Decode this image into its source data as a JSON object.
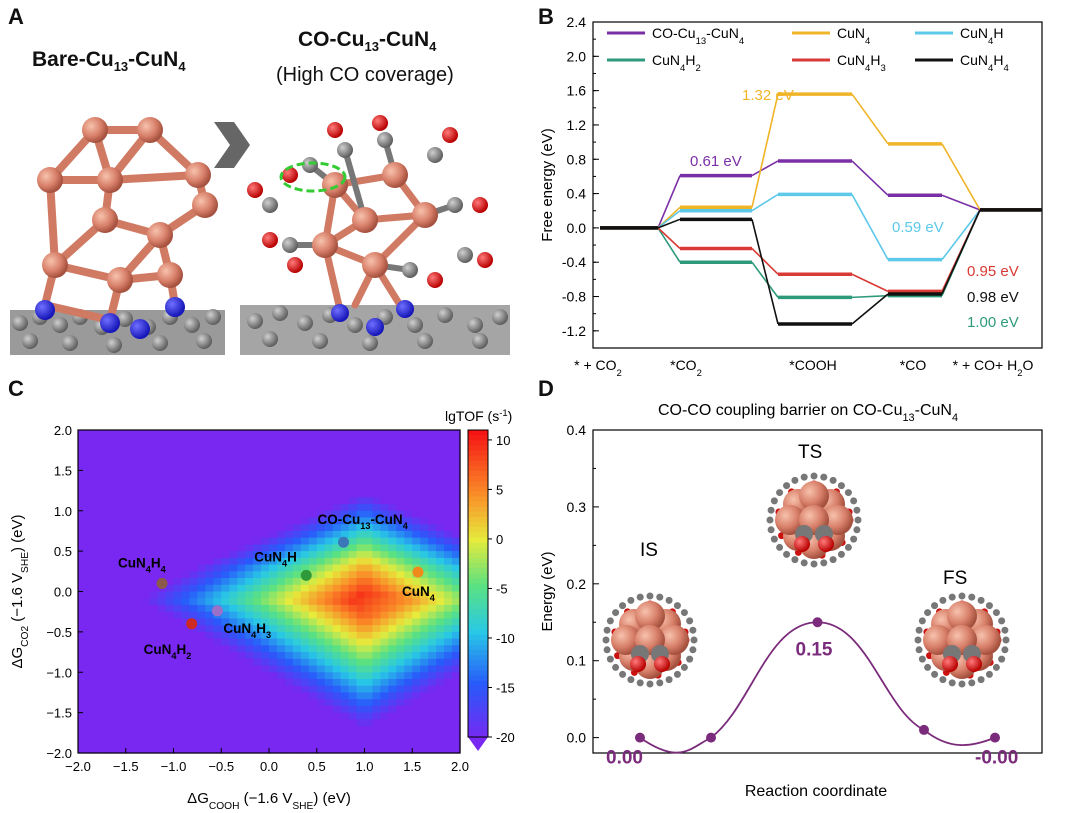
{
  "panels": {
    "a": "A",
    "b": "B",
    "c": "C",
    "d": "D"
  },
  "panel_a": {
    "title_left": "Bare-Cu",
    "title_left_sub": "13",
    "title_left_tail": "-CuN",
    "title_left_sub2": "4",
    "title_right": "CO-Cu",
    "title_right_sub": "13",
    "title_right_tail": "-CuN",
    "title_right_sub2": "4",
    "subtitle_right": "(High CO coverage)",
    "arrow_icon": "chevron-right-icon"
  },
  "chart_data": [
    {
      "id": "B",
      "type": "line",
      "ylabel": "Free energy (eV)",
      "ylim": [
        -1.4,
        2.4
      ],
      "yticks": [
        "-1.2",
        "-0.8",
        "-0.4",
        "0.0",
        "0.4",
        "0.8",
        "1.2",
        "1.6",
        "2.0",
        "2.4"
      ],
      "categories": [
        "* + CO2",
        "*CO2",
        "*COOH",
        "*CO",
        "* + CO+ H2O"
      ],
      "category_labels": [
        {
          "main": "* + CO",
          "sub": "2",
          "tail": ""
        },
        {
          "main": "*CO",
          "sub": "2",
          "tail": ""
        },
        {
          "main": "*COOH",
          "sub": "",
          "tail": ""
        },
        {
          "main": "*CO",
          "sub": "",
          "tail": ""
        },
        {
          "main": "* + CO+ H",
          "sub": "2",
          "tail": "O"
        }
      ],
      "series": [
        {
          "name": "CO-Cu13-CuN4",
          "color": "#7b2fa6",
          "values": [
            0.0,
            0.61,
            0.78,
            0.38,
            0.21
          ]
        },
        {
          "name": "CuN4",
          "color": "#f0b429",
          "values": [
            0.0,
            0.24,
            1.56,
            0.98,
            0.21
          ]
        },
        {
          "name": "CuN4H",
          "color": "#5cc8ea",
          "values": [
            0.0,
            0.2,
            0.39,
            -0.37,
            0.21
          ]
        },
        {
          "name": "CuN4H2",
          "color": "#2e9a7b",
          "values": [
            0.0,
            -0.4,
            -0.81,
            -0.79,
            0.21
          ]
        },
        {
          "name": "CuN4H3",
          "color": "#d93a35",
          "values": [
            0.0,
            -0.24,
            -0.54,
            -0.74,
            0.21
          ]
        },
        {
          "name": "CuN4H4",
          "color": "#111111",
          "values": [
            0.0,
            0.1,
            -1.12,
            -0.77,
            0.21
          ]
        }
      ],
      "legend_labels": [
        {
          "main": "CO-Cu",
          "sub": "13",
          "tail": "-CuN",
          "sub2": "4"
        },
        {
          "main": "CuN",
          "sub": "4",
          "tail": "",
          "sub2": ""
        },
        {
          "main": "CuN",
          "sub": "4",
          "tail": "H",
          "sub2": ""
        },
        {
          "main": "CuN",
          "sub": "4",
          "tail": "H",
          "sub2": "2"
        },
        {
          "main": "CuN",
          "sub": "4",
          "tail": "H",
          "sub2": "3"
        },
        {
          "main": "CuN",
          "sub": "4",
          "tail": "H",
          "sub2": "4"
        }
      ],
      "annotations": [
        {
          "text": "1.32 eV",
          "color": "#f0b429"
        },
        {
          "text": "0.61 eV",
          "color": "#7b2fa6"
        },
        {
          "text": "0.59 eV",
          "color": "#5cc8ea"
        },
        {
          "text": "0.95 eV",
          "color": "#d93a35"
        },
        {
          "text": "0.98 eV",
          "color": "#111111"
        },
        {
          "text": "1.00 eV",
          "color": "#2e9a7b"
        }
      ]
    },
    {
      "id": "C",
      "type": "heatmap",
      "xlabel": {
        "main": "ΔG",
        "sub": "COOH",
        "tail": " (−1.6 V",
        "sub2": "SHE",
        "tail2": ") (eV)"
      },
      "ylabel": {
        "main": "ΔG",
        "sub": "CO2",
        "tail": " (−1.6 V",
        "sub2": "SHE",
        "tail2": ") (eV)"
      },
      "xlim": [
        -2.0,
        2.0
      ],
      "ylim": [
        -2.0,
        2.0
      ],
      "xticks": [
        "−2.0",
        "−1.5",
        "−1.0",
        "−0.5",
        "0.0",
        "0.5",
        "1.0",
        "1.5",
        "2.0"
      ],
      "yticks": [
        "2.0",
        "1.5",
        "1.0",
        "0.5",
        "0.0",
        "−0.5",
        "−1.0",
        "−1.5",
        "−2.0"
      ],
      "colorbar_title": "lgTOF (s",
      "colorbar_title_sup": "-1",
      "colorbar_title_tail": ")",
      "colorbar_ticks": [
        "10",
        "5",
        "0",
        "-5",
        "-10",
        "-15",
        "-20"
      ],
      "points": [
        {
          "label_main": "CO-Cu",
          "label_sub": "13",
          "label_tail": "-CuN",
          "label_sub2": "4",
          "x": 0.78,
          "y": 0.61,
          "color": "#3a78b8"
        },
        {
          "label_main": "CuN",
          "label_sub": "4",
          "label_tail": "H",
          "label_sub2": "",
          "x": 0.39,
          "y": 0.2,
          "color": "#2e9a3a"
        },
        {
          "label_main": "CuN",
          "label_sub": "4",
          "label_tail": "",
          "label_sub2": "",
          "x": 1.56,
          "y": 0.24,
          "color": "#f08a1a"
        },
        {
          "label_main": "CuN",
          "label_sub": "4",
          "label_tail": "H",
          "label_sub2": "4",
          "x": -1.12,
          "y": 0.1,
          "color": "#8b5a4a"
        },
        {
          "label_main": "CuN",
          "label_sub": "4",
          "label_tail": "H",
          "label_sub2": "3",
          "x": -0.54,
          "y": -0.24,
          "color": "#9a70c8"
        },
        {
          "label_main": "CuN",
          "label_sub": "4",
          "label_tail": "H",
          "label_sub2": "2",
          "x": -0.81,
          "y": -0.4,
          "color": "#cc2a22"
        }
      ]
    },
    {
      "id": "D",
      "type": "line",
      "title": "CO-CO coupling barrier on CO-Cu",
      "title_sub": "13",
      "title_tail": "-CuN",
      "title_sub2": "4",
      "xlabel": "Reaction coordinate",
      "ylabel": "Energy (eV)",
      "ylim": [
        -0.02,
        0.4
      ],
      "yticks": [
        "0.0",
        "0.1",
        "0.2",
        "0.3",
        "0.4"
      ],
      "states": [
        "IS",
        "TS",
        "FS"
      ],
      "points": [
        {
          "x": 0.0,
          "y": 0.0
        },
        {
          "x": 0.2,
          "y": 0.0
        },
        {
          "x": 0.5,
          "y": 0.15
        },
        {
          "x": 0.8,
          "y": 0.01
        },
        {
          "x": 1.0,
          "y": 0.0
        }
      ],
      "value_labels": [
        "0.00",
        "0.15",
        "-0.00"
      ],
      "color": "#7b2b7b"
    }
  ]
}
